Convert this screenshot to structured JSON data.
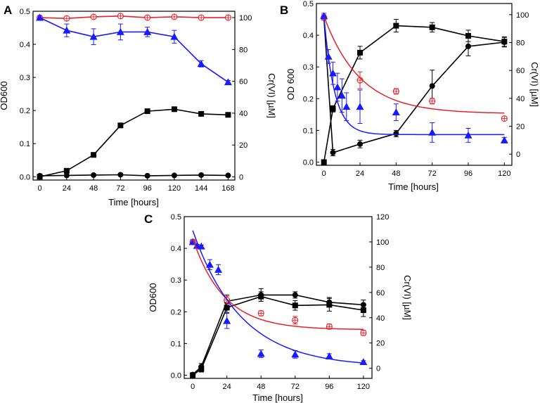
{
  "colors": {
    "black": "#000000",
    "red": "#e8202a",
    "blue": "#1a1aff"
  },
  "chart_data": [
    {
      "panel": "A",
      "type": "line",
      "xlabel": "Time [hours]",
      "ylabel": "OD600",
      "y2label": "Cr(VI) [µM]",
      "xlim": [
        -6,
        174
      ],
      "ylim": [
        -0.01,
        0.5
      ],
      "y2lim": [
        -2,
        104
      ],
      "xticks": [
        0,
        24,
        48,
        72,
        96,
        120,
        144,
        168
      ],
      "yticks": [
        0.0,
        0.1,
        0.2,
        0.3,
        0.4,
        0.5
      ],
      "y2ticks": [
        0,
        20,
        40,
        60,
        80,
        100
      ],
      "series": [
        {
          "name": "OD600 squares",
          "axis": "left",
          "marker": "square",
          "color": "#000000",
          "connect": true,
          "x": [
            0,
            24,
            48,
            72,
            96,
            120,
            144,
            168
          ],
          "y": [
            0.0,
            0.018,
            0.066,
            0.155,
            0.198,
            0.204,
            0.19,
            0.187
          ],
          "err": [
            0.003,
            0.004,
            0.007,
            0.005,
            0.006,
            0.004,
            0.004,
            0.004
          ]
        },
        {
          "name": "OD600 circles",
          "axis": "left",
          "marker": "circle",
          "color": "#000000",
          "connect": true,
          "x": [
            0,
            24,
            48,
            72,
            96,
            120,
            144,
            168
          ],
          "y": [
            0.003,
            0.004,
            0.005,
            0.006,
            0.003,
            0.004,
            0.005,
            0.004
          ],
          "err": [
            0.002,
            0.002,
            0.002,
            0.002,
            0.002,
            0.002,
            0.002,
            0.002
          ]
        },
        {
          "name": "Cr(VI) open circles",
          "axis": "right",
          "marker": "ocircle",
          "color": "#e8202a",
          "connect": true,
          "x": [
            0,
            24,
            48,
            72,
            96,
            120,
            144,
            168
          ],
          "y": [
            100,
            99.5,
            100.5,
            101,
            100,
            100.5,
            100,
            100
          ],
          "err": [
            1,
            1,
            1,
            1,
            1,
            1,
            1,
            1
          ]
        },
        {
          "name": "Cr(VI) triangles",
          "axis": "right",
          "marker": "triangle",
          "color": "#1a1aff",
          "connect": true,
          "x": [
            0,
            24,
            48,
            72,
            96,
            120,
            144,
            168
          ],
          "y": [
            100,
            92,
            88,
            91,
            91,
            88,
            71,
            59.5
          ],
          "err": [
            1,
            4,
            5,
            5,
            3,
            4,
            2,
            1
          ]
        }
      ]
    },
    {
      "panel": "B",
      "type": "line",
      "xlabel": "Time [hours]",
      "ylabel": "OD 600",
      "y2label": "Cr(VI) [µM]",
      "xlim": [
        -5,
        125
      ],
      "ylim": [
        -0.01,
        0.5
      ],
      "y2lim": [
        -8,
        108
      ],
      "xticks": [
        0,
        24,
        48,
        72,
        96,
        120
      ],
      "yticks": [
        0.0,
        0.1,
        0.2,
        0.3,
        0.4,
        0.5
      ],
      "y2ticks": [
        0,
        20,
        40,
        60,
        80,
        100
      ],
      "series": [
        {
          "name": "OD600 squares",
          "axis": "left",
          "marker": "square",
          "color": "#000000",
          "connect": true,
          "x": [
            0,
            6,
            24,
            48,
            72,
            96,
            120
          ],
          "y": [
            0.0,
            0.168,
            0.345,
            0.43,
            0.425,
            0.398,
            0.38
          ],
          "err": [
            0.004,
            0.01,
            0.02,
            0.02,
            0.015,
            0.018,
            0.015
          ]
        },
        {
          "name": "OD600 circles",
          "axis": "left",
          "marker": "circle",
          "color": "#000000",
          "connect": true,
          "x": [
            0,
            6,
            24,
            48,
            72,
            96,
            120
          ],
          "y": [
            0.455,
            0.03,
            0.057,
            0.09,
            0.24,
            0.365,
            0.378
          ],
          "err": [
            0.005,
            0.01,
            0.012,
            0.01,
            0.05,
            0.03,
            0.015
          ]
        },
        {
          "name": "Cr(VI) open circles",
          "axis": "right",
          "marker": "ocircle",
          "color": "#e8202a",
          "connect": false,
          "x": [
            0,
            24,
            48,
            72,
            120
          ],
          "y": [
            98,
            53,
            45,
            38,
            25.5
          ],
          "err": [
            2,
            6,
            2,
            2,
            1
          ]
        },
        {
          "name": "Cr(VI) triangles",
          "axis": "right",
          "marker": "triangle",
          "color": "#1a1aff",
          "connect": false,
          "x": [
            0,
            3,
            6,
            9,
            12,
            15,
            24,
            48,
            72,
            96,
            120
          ],
          "y": [
            99,
            70,
            58,
            48,
            42,
            34,
            34,
            30,
            15.5,
            13.5,
            10
          ],
          "err": [
            2,
            5,
            8,
            10,
            12,
            10,
            12,
            6,
            7,
            5,
            2
          ]
        },
        {
          "name": "red fit",
          "axis": "right",
          "marker": "none",
          "color": "#e8202a",
          "type": "curve",
          "fit": {
            "function": "exp_decay",
            "y0": 29,
            "A": 70,
            "tau": 24,
            "x_range": [
              0,
              120
            ]
          }
        },
        {
          "name": "blue fit",
          "axis": "right",
          "marker": "none",
          "color": "#1a1aff",
          "type": "curve",
          "fit": {
            "function": "exp_decay",
            "y0": 14,
            "A": 85,
            "tau": 7,
            "x_range": [
              0,
              120
            ]
          }
        }
      ]
    },
    {
      "panel": "C",
      "type": "line",
      "xlabel": "Time [hours]",
      "ylabel": "OD600",
      "y2label": "Cr(VI) [µM]",
      "xlim": [
        -6,
        126
      ],
      "ylim": [
        -0.01,
        0.5
      ],
      "y2lim": [
        -8,
        120
      ],
      "xticks": [
        0,
        24,
        48,
        72,
        96,
        120
      ],
      "yticks": [
        0.0,
        0.1,
        0.2,
        0.3,
        0.4,
        0.5
      ],
      "y2ticks": [
        0,
        20,
        40,
        60,
        80,
        100,
        120
      ],
      "series": [
        {
          "name": "OD600 squares",
          "axis": "left",
          "marker": "square",
          "color": "#000000",
          "connect": true,
          "x": [
            0,
            6,
            24,
            48,
            72,
            96,
            120
          ],
          "y": [
            0.0,
            0.02,
            0.213,
            0.248,
            0.22,
            0.222,
            0.205
          ],
          "err": [
            0.004,
            0.01,
            0.015,
            0.015,
            0.015,
            0.02,
            0.02
          ]
        },
        {
          "name": "OD600 circles",
          "axis": "left",
          "marker": "circle",
          "color": "#000000",
          "connect": true,
          "x": [
            0,
            6,
            24,
            48,
            72,
            96,
            120
          ],
          "y": [
            0.002,
            0.027,
            0.233,
            0.253,
            0.253,
            0.23,
            0.222
          ],
          "err": [
            0.004,
            0.01,
            0.02,
            0.02,
            0.01,
            0.015,
            0.015
          ]
        },
        {
          "name": "Cr(VI) open circles",
          "axis": "right",
          "marker": "ocircle",
          "color": "#e8202a",
          "connect": false,
          "x": [
            0,
            24,
            48,
            72,
            96,
            120
          ],
          "y": [
            100,
            54,
            43.5,
            38,
            33,
            28
          ],
          "err": [
            2,
            3,
            2,
            3,
            2,
            2
          ]
        },
        {
          "name": "Cr(VI) triangles",
          "axis": "right",
          "marker": "triangle",
          "color": "#1a1aff",
          "connect": false,
          "x": [
            0,
            3,
            6,
            12,
            18,
            24,
            48,
            72,
            96,
            120
          ],
          "y": [
            100,
            97,
            96.5,
            82,
            78,
            37.5,
            11.5,
            11,
            9.5,
            5
          ],
          "err": [
            1,
            1,
            1,
            4,
            4,
            6,
            3,
            3,
            2,
            1
          ]
        },
        {
          "name": "red fit",
          "axis": "right",
          "marker": "none",
          "color": "#e8202a",
          "type": "curve",
          "fit": {
            "function": "exp_decay",
            "y0": 30.5,
            "A": 72,
            "tau": 22,
            "x_range": [
              0,
              120
            ]
          }
        },
        {
          "name": "blue fit",
          "axis": "right",
          "marker": "none",
          "color": "#1a1aff",
          "type": "curve",
          "fit": {
            "function": "exp_decay",
            "y0": 1,
            "A": 108,
            "tau": 34,
            "x_range": [
              0,
              120
            ]
          }
        }
      ]
    }
  ]
}
